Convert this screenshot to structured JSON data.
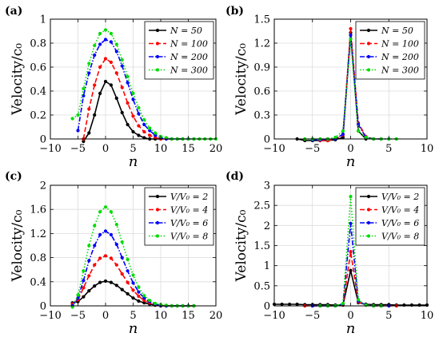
{
  "chart_data": [
    {
      "type": "line",
      "panel_label": "(a)",
      "xlabel": "n",
      "ylabel": "Velocity/c₀",
      "xlim": [
        -10,
        20
      ],
      "ylim": [
        0,
        1
      ],
      "xticks": [
        -10,
        -5,
        0,
        5,
        10,
        15,
        20
      ],
      "xtick_labels": [
        "−10",
        "−5",
        "0",
        "5",
        "10",
        "15",
        "20"
      ],
      "yticks": [
        0,
        0.2,
        0.4,
        0.6,
        0.8,
        1
      ],
      "ytick_labels": [
        "0",
        "0.2",
        "0.4",
        "0.6",
        "0.8",
        "1"
      ],
      "grid": true,
      "legend_position": "top-right",
      "series": [
        {
          "name": "N = 50",
          "color": "#000000",
          "style": "solid",
          "x": [
            -4,
            -3,
            -2,
            -1,
            0,
            1,
            2,
            3,
            4,
            5,
            6,
            7,
            8,
            9,
            10
          ],
          "y": [
            -0.02,
            0.05,
            0.2,
            0.38,
            0.48,
            0.45,
            0.34,
            0.22,
            0.12,
            0.06,
            0.03,
            0.01,
            0.0,
            0.0,
            0.0
          ]
        },
        {
          "name": "N = 100",
          "color": "#ff0000",
          "style": "dashed",
          "x": [
            -4,
            -3,
            -2,
            -1,
            0,
            1,
            2,
            3,
            4,
            5,
            6,
            7,
            8,
            9,
            10,
            11,
            12,
            13,
            14
          ],
          "y": [
            0.0,
            0.25,
            0.45,
            0.6,
            0.67,
            0.64,
            0.55,
            0.43,
            0.3,
            0.19,
            0.11,
            0.06,
            0.03,
            0.01,
            0.0,
            0.0,
            0.0,
            0.0,
            0.0
          ]
        },
        {
          "name": "N = 200",
          "color": "#0000ff",
          "style": "dashdot",
          "x": [
            -5,
            -4,
            -3,
            -2,
            -1,
            0,
            1,
            2,
            3,
            4,
            5,
            6,
            7,
            8,
            9,
            10,
            11,
            12,
            13,
            14,
            15,
            16
          ],
          "y": [
            0.07,
            0.36,
            0.55,
            0.7,
            0.79,
            0.83,
            0.81,
            0.73,
            0.61,
            0.47,
            0.33,
            0.21,
            0.12,
            0.07,
            0.03,
            0.01,
            0.0,
            0.0,
            0.0,
            0.0,
            0.0,
            0.0
          ]
        },
        {
          "name": "N = 300",
          "color": "#00dd00",
          "style": "dotted",
          "x": [
            -6,
            -5,
            -4,
            -3,
            -2,
            -1,
            0,
            1,
            2,
            3,
            4,
            5,
            6,
            7,
            8,
            9,
            10,
            11,
            12,
            13,
            14,
            15,
            16,
            17,
            18,
            19,
            20
          ],
          "y": [
            0.17,
            0.2,
            0.42,
            0.63,
            0.78,
            0.88,
            0.91,
            0.88,
            0.79,
            0.66,
            0.52,
            0.38,
            0.26,
            0.16,
            0.09,
            0.05,
            0.02,
            0.01,
            0.0,
            0.0,
            0.0,
            0.0,
            0.0,
            0.0,
            0.0,
            0.0,
            0.0
          ]
        }
      ]
    },
    {
      "type": "line",
      "panel_label": "(b)",
      "xlabel": "n",
      "ylabel": "Velocity/c₀",
      "xlim": [
        -10,
        10
      ],
      "ylim": [
        0,
        1.5
      ],
      "xticks": [
        -10,
        -5,
        0,
        5,
        10
      ],
      "xtick_labels": [
        "−10",
        "−5",
        "0",
        "5",
        "10"
      ],
      "yticks": [
        0,
        0.3,
        0.6,
        0.9,
        1.2,
        1.5
      ],
      "ytick_labels": [
        "0",
        "0.3",
        "0.6",
        "0.9",
        "1.2",
        "1.5"
      ],
      "grid": true,
      "legend_position": "top-right",
      "series": [
        {
          "name": "N = 50",
          "color": "#000000",
          "style": "solid",
          "x": [
            -7,
            -6,
            -5,
            -4,
            -3,
            -2,
            -1,
            0,
            1,
            2
          ],
          "y": [
            0.0,
            -0.02,
            -0.02,
            -0.02,
            -0.02,
            -0.01,
            0.02,
            1.33,
            0.1,
            0.0
          ]
        },
        {
          "name": "N = 100",
          "color": "#ff0000",
          "style": "dashed",
          "x": [
            -4,
            -3,
            -2,
            -1,
            0,
            1,
            2,
            3,
            4
          ],
          "y": [
            -0.02,
            -0.02,
            0.0,
            0.05,
            1.38,
            0.2,
            0.03,
            0.0,
            0.0
          ]
        },
        {
          "name": "N = 200",
          "color": "#0000ff",
          "style": "dashdot",
          "x": [
            -5,
            -4,
            -3,
            -2,
            -1,
            0,
            1,
            2,
            3,
            4,
            5
          ],
          "y": [
            -0.01,
            -0.01,
            0.0,
            0.0,
            0.06,
            1.3,
            0.18,
            0.02,
            0.0,
            0.0,
            0.0
          ]
        },
        {
          "name": "N = 300",
          "color": "#00dd00",
          "style": "dotted",
          "x": [
            -6,
            -5,
            -4,
            -3,
            -2,
            -1,
            0,
            1,
            2,
            3,
            4,
            5,
            6
          ],
          "y": [
            0.0,
            0.0,
            0.0,
            0.0,
            0.02,
            0.1,
            1.25,
            0.1,
            0.02,
            0.0,
            0.0,
            0.0,
            0.0
          ]
        }
      ]
    },
    {
      "type": "line",
      "panel_label": "(c)",
      "xlabel": "n",
      "ylabel": "Velocity/c₀",
      "xlim": [
        -10,
        20
      ],
      "ylim": [
        0,
        2
      ],
      "xticks": [
        -10,
        -5,
        0,
        5,
        10,
        15,
        20
      ],
      "xtick_labels": [
        "−10",
        "−5",
        "0",
        "5",
        "10",
        "15",
        "20"
      ],
      "yticks": [
        0,
        0.4,
        0.8,
        1.2,
        1.6,
        2
      ],
      "ytick_labels": [
        "0",
        "0.4",
        "0.8",
        "1.2",
        "1.6",
        "2"
      ],
      "grid": true,
      "legend_position": "top-right",
      "series": [
        {
          "name": "V/V₀ = 2",
          "color": "#000000",
          "style": "solid",
          "x": [
            -6,
            -5,
            -4,
            -3,
            -2,
            -1,
            0,
            1,
            2,
            3,
            4,
            5,
            6,
            7,
            8,
            9,
            10,
            11,
            12,
            13,
            14,
            15,
            16
          ],
          "y": [
            0.05,
            0.07,
            0.15,
            0.25,
            0.33,
            0.39,
            0.41,
            0.39,
            0.34,
            0.27,
            0.2,
            0.13,
            0.08,
            0.05,
            0.03,
            0.01,
            0.0,
            0.0,
            0.0,
            0.0,
            0.0,
            0.0,
            0.0
          ]
        },
        {
          "name": "V/V₀ = 4",
          "color": "#ff0000",
          "style": "dashed",
          "x": [
            -6,
            -5,
            -4,
            -3,
            -2,
            -1,
            0,
            1,
            2,
            3,
            4,
            5,
            6,
            7,
            8,
            9,
            10,
            11,
            12,
            13,
            14,
            15,
            16
          ],
          "y": [
            0.03,
            0.1,
            0.3,
            0.5,
            0.68,
            0.79,
            0.83,
            0.79,
            0.68,
            0.53,
            0.39,
            0.26,
            0.16,
            0.09,
            0.05,
            0.02,
            0.01,
            0.0,
            0.0,
            0.0,
            0.0,
            0.0,
            0.0
          ]
        },
        {
          "name": "V/V₀ = 6",
          "color": "#0000ff",
          "style": "dashdot",
          "x": [
            -6,
            -5,
            -4,
            -3,
            -2,
            -1,
            0,
            1,
            2,
            3,
            4,
            5,
            6,
            7,
            8,
            9,
            10,
            11,
            12,
            13,
            14,
            15,
            16
          ],
          "y": [
            0.0,
            0.13,
            0.42,
            0.75,
            1.0,
            1.18,
            1.24,
            1.18,
            1.02,
            0.8,
            0.58,
            0.38,
            0.23,
            0.13,
            0.07,
            0.03,
            0.01,
            0.0,
            0.0,
            0.0,
            0.0,
            0.0,
            0.0
          ]
        },
        {
          "name": "V/V₀ = 8",
          "color": "#00dd00",
          "style": "dotted",
          "x": [
            -6,
            -5,
            -4,
            -3,
            -2,
            -1,
            0,
            1,
            2,
            3,
            4,
            5,
            6,
            7,
            8,
            9,
            10,
            11,
            12,
            13,
            14,
            15,
            16
          ],
          "y": [
            -0.02,
            0.18,
            0.58,
            1.0,
            1.33,
            1.56,
            1.64,
            1.56,
            1.35,
            1.06,
            0.77,
            0.51,
            0.31,
            0.17,
            0.09,
            0.04,
            0.02,
            0.01,
            0.0,
            0.0,
            0.0,
            0.0,
            0.0
          ]
        }
      ]
    },
    {
      "type": "line",
      "panel_label": "(d)",
      "xlabel": "n",
      "ylabel": "Velocity/c₀",
      "xlim": [
        -10,
        10
      ],
      "ylim": [
        0,
        3
      ],
      "xticks": [
        -10,
        -5,
        0,
        5,
        10
      ],
      "xtick_labels": [
        "−10",
        "−5",
        "0",
        "5",
        "10"
      ],
      "yticks": [
        0,
        0.5,
        1,
        1.5,
        2,
        2.5,
        3
      ],
      "ytick_labels": [
        "0",
        "0.5",
        "1",
        "1.5",
        "2",
        "2.5",
        "3"
      ],
      "grid": true,
      "legend_position": "top-right",
      "series": [
        {
          "name": "V/V₀ = 2",
          "color": "#000000",
          "style": "solid",
          "x": [
            -10,
            -9,
            -8,
            -7,
            -6,
            -5,
            -4,
            -3,
            -2,
            -1,
            0,
            1,
            2,
            3,
            4,
            5,
            6,
            7,
            8,
            9,
            10
          ],
          "y": [
            0.04,
            0.04,
            0.04,
            0.04,
            0.03,
            0.03,
            0.03,
            0.03,
            0.02,
            0.02,
            0.88,
            0.08,
            0.04,
            0.03,
            0.03,
            0.03,
            0.02,
            0.02,
            0.02,
            0.02,
            0.02
          ]
        },
        {
          "name": "V/V₀ = 4",
          "color": "#ff0000",
          "style": "dashed",
          "x": [
            -6,
            -5,
            -4,
            -3,
            -2,
            -1,
            0,
            1,
            2,
            3,
            4,
            5,
            6
          ],
          "y": [
            0.0,
            0.0,
            0.0,
            0.0,
            0.0,
            0.03,
            1.35,
            0.1,
            0.02,
            0.0,
            0.0,
            0.0,
            0.0
          ]
        },
        {
          "name": "V/V₀ = 6",
          "color": "#0000ff",
          "style": "dashdot",
          "x": [
            -5,
            -4,
            -3,
            -2,
            -1,
            0,
            1,
            2,
            3,
            4,
            5
          ],
          "y": [
            0.0,
            0.0,
            0.0,
            0.0,
            0.05,
            2.05,
            0.12,
            0.02,
            0.0,
            0.0,
            0.0
          ]
        },
        {
          "name": "V/V₀ = 8",
          "color": "#00dd00",
          "style": "dotted",
          "x": [
            -4,
            -3,
            -2,
            -1,
            0,
            1,
            2,
            3,
            4
          ],
          "y": [
            0.0,
            0.0,
            0.0,
            0.06,
            2.72,
            0.15,
            0.02,
            0.0,
            0.0
          ]
        }
      ]
    }
  ]
}
